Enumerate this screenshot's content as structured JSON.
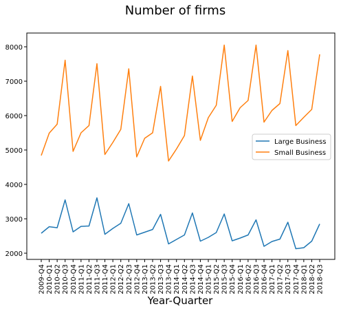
{
  "chart_data": {
    "type": "line",
    "title": "Number of firms",
    "xlabel": "Year-Quarter",
    "ylabel": "",
    "ylim": [
      1820,
      8400
    ],
    "yticks": [
      2000,
      3000,
      4000,
      5000,
      6000,
      7000,
      8000
    ],
    "grid": false,
    "legend_position": "center-right",
    "categories": [
      "2009-Q4",
      "2010-Q1",
      "2010-Q2",
      "2010-Q3",
      "2010-Q4",
      "2011-Q1",
      "2011-Q2",
      "2011-Q3",
      "2011-Q4",
      "2012-Q1",
      "2012-Q2",
      "2012-Q3",
      "2012-Q4",
      "2013-Q1",
      "2013-Q2",
      "2013-Q3",
      "2013-Q4",
      "2014-Q1",
      "2014-Q2",
      "2014-Q3",
      "2014-Q4",
      "2015-Q1",
      "2015-Q2",
      "2015-Q3",
      "2015-Q4",
      "2016-Q1",
      "2016-Q2",
      "2016-Q3",
      "2016-Q4",
      "2017-Q1",
      "2017-Q2",
      "2017-Q3",
      "2017-Q4",
      "2018-Q1",
      "2018-Q2",
      "2018-Q3"
    ],
    "series": [
      {
        "name": "Large Business",
        "color": "#1f77b4",
        "values": [
          2580,
          2770,
          2740,
          3550,
          2620,
          2780,
          2790,
          3610,
          2550,
          2720,
          2870,
          3440,
          2530,
          2610,
          2690,
          3130,
          2270,
          2400,
          2530,
          3170,
          2350,
          2460,
          2600,
          3140,
          2360,
          2440,
          2530,
          2970,
          2200,
          2340,
          2410,
          2900,
          2130,
          2160,
          2350,
          2850
        ]
      },
      {
        "name": "Small Business",
        "color": "#ff7f0e",
        "values": [
          4840,
          5490,
          5750,
          7610,
          4960,
          5500,
          5710,
          7510,
          4870,
          5220,
          5600,
          7360,
          4800,
          5340,
          5500,
          6850,
          4680,
          5030,
          5420,
          7150,
          5280,
          5940,
          6300,
          8050,
          5830,
          6230,
          6440,
          8050,
          5810,
          6150,
          6350,
          7890,
          5710,
          5950,
          6180,
          7780
        ]
      }
    ]
  }
}
